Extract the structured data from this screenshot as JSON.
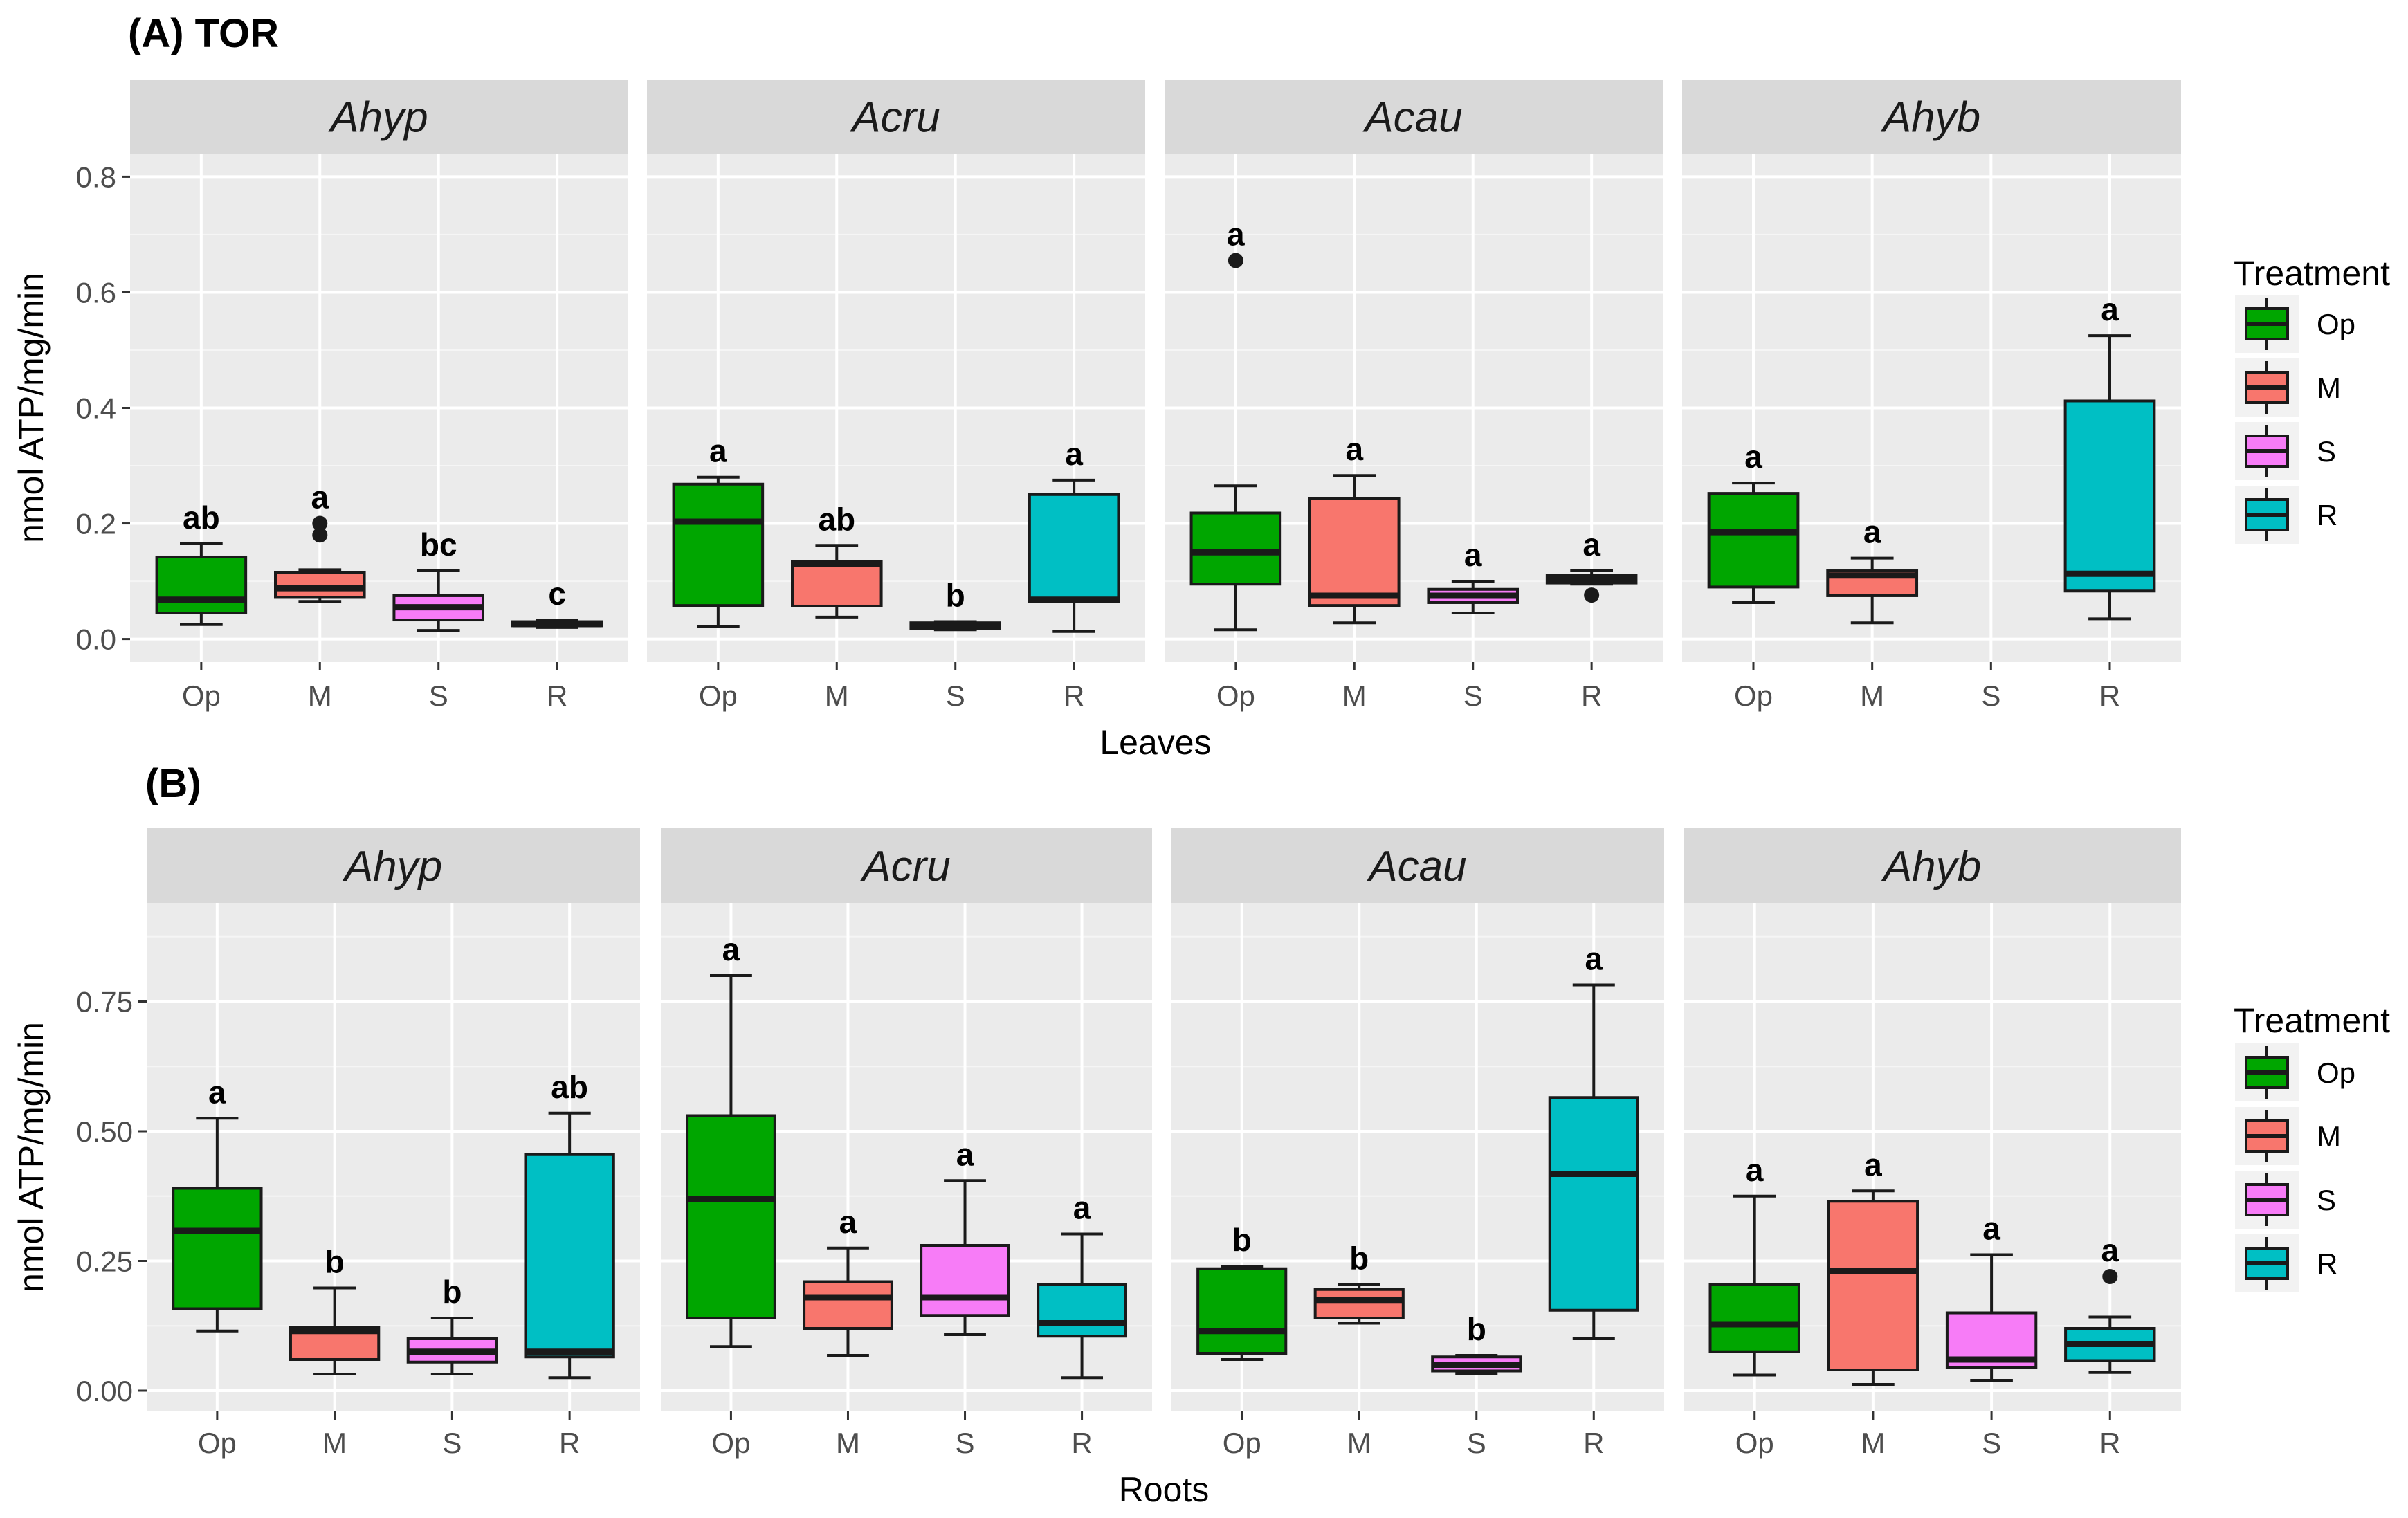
{
  "treatments": [
    "Op",
    "M",
    "S",
    "R"
  ],
  "colors": {
    "Op": "#00a600",
    "M": "#f8766d",
    "S": "#f77cf7",
    "R": "#00bfc4"
  },
  "chart_data": [
    {
      "type": "box",
      "panel_label": "(A) TOR",
      "xlabel": "Leaves",
      "ylabel": "nmol ATP/mg/min",
      "ylim": [
        -0.04,
        0.84
      ],
      "yticks": [
        0.0,
        0.2,
        0.4,
        0.6,
        0.8
      ],
      "ytick_labels": [
        "0.0",
        "0.2",
        "0.4",
        "0.6",
        "0.8"
      ],
      "legend": {
        "title": "Treatment",
        "entries": [
          "Op",
          "M",
          "S",
          "R"
        ],
        "placement": "right"
      },
      "facets": [
        {
          "name": "Ahyp",
          "boxes": [
            {
              "treatment": "Op",
              "min": 0.025,
              "q1": 0.045,
              "median": 0.068,
              "q3": 0.142,
              "max": 0.165,
              "outliers": [],
              "letter": "ab"
            },
            {
              "treatment": "M",
              "min": 0.065,
              "q1": 0.072,
              "median": 0.088,
              "q3": 0.115,
              "max": 0.12,
              "outliers": [
                0.18,
                0.2
              ],
              "letter": "a"
            },
            {
              "treatment": "S",
              "min": 0.015,
              "q1": 0.033,
              "median": 0.055,
              "q3": 0.075,
              "max": 0.118,
              "outliers": [],
              "letter": "bc"
            },
            {
              "treatment": "R",
              "min": 0.02,
              "q1": 0.023,
              "median": 0.026,
              "q3": 0.03,
              "max": 0.033,
              "outliers": [],
              "letter": "c"
            }
          ]
        },
        {
          "name": "Acru",
          "boxes": [
            {
              "treatment": "Op",
              "min": 0.022,
              "q1": 0.058,
              "median": 0.203,
              "q3": 0.268,
              "max": 0.28,
              "outliers": [],
              "letter": "a"
            },
            {
              "treatment": "M",
              "min": 0.038,
              "q1": 0.057,
              "median": 0.13,
              "q3": 0.134,
              "max": 0.162,
              "outliers": [],
              "letter": "ab"
            },
            {
              "treatment": "S",
              "min": 0.016,
              "q1": 0.018,
              "median": 0.022,
              "q3": 0.028,
              "max": 0.03,
              "outliers": [],
              "letter": "b"
            },
            {
              "treatment": "R",
              "min": 0.013,
              "q1": 0.065,
              "median": 0.068,
              "q3": 0.25,
              "max": 0.275,
              "outliers": [],
              "letter": "a"
            }
          ]
        },
        {
          "name": "Acau",
          "boxes": [
            {
              "treatment": "Op",
              "min": 0.016,
              "q1": 0.095,
              "median": 0.15,
              "q3": 0.218,
              "max": 0.265,
              "outliers": [
                0.655
              ],
              "letter": "a"
            },
            {
              "treatment": "M",
              "min": 0.028,
              "q1": 0.058,
              "median": 0.075,
              "q3": 0.243,
              "max": 0.283,
              "outliers": [],
              "letter": "a"
            },
            {
              "treatment": "S",
              "min": 0.045,
              "q1": 0.063,
              "median": 0.075,
              "q3": 0.086,
              "max": 0.1,
              "outliers": [],
              "letter": "a"
            },
            {
              "treatment": "R",
              "min": 0.095,
              "q1": 0.097,
              "median": 0.103,
              "q3": 0.11,
              "max": 0.118,
              "outliers": [
                0.076
              ],
              "letter": "a"
            }
          ]
        },
        {
          "name": "Ahyb",
          "boxes": [
            {
              "treatment": "Op",
              "min": 0.063,
              "q1": 0.09,
              "median": 0.185,
              "q3": 0.252,
              "max": 0.27,
              "outliers": [],
              "letter": "a"
            },
            {
              "treatment": "M",
              "min": 0.028,
              "q1": 0.075,
              "median": 0.11,
              "q3": 0.118,
              "max": 0.14,
              "outliers": [],
              "letter": "a"
            },
            {
              "treatment": "R",
              "min": 0.035,
              "q1": 0.083,
              "median": 0.113,
              "q3": 0.412,
              "max": 0.525,
              "outliers": [],
              "letter": "a"
            }
          ]
        }
      ]
    },
    {
      "type": "box",
      "panel_label": "(B)",
      "xlabel": "Roots",
      "ylabel": "nmol ATP/mg/min",
      "ylim": [
        -0.04,
        0.94
      ],
      "yticks": [
        0.0,
        0.25,
        0.5,
        0.75
      ],
      "ytick_labels": [
        "0.00",
        "0.25",
        "0.50",
        "0.75"
      ],
      "legend": {
        "title": "Treatment",
        "entries": [
          "Op",
          "M",
          "S",
          "R"
        ],
        "placement": "right"
      },
      "facets": [
        {
          "name": "Ahyp",
          "boxes": [
            {
              "treatment": "Op",
              "min": 0.115,
              "q1": 0.158,
              "median": 0.308,
              "q3": 0.39,
              "max": 0.525,
              "outliers": [],
              "letter": "a"
            },
            {
              "treatment": "M",
              "min": 0.032,
              "q1": 0.06,
              "median": 0.115,
              "q3": 0.122,
              "max": 0.198,
              "outliers": [],
              "letter": "b"
            },
            {
              "treatment": "S",
              "min": 0.032,
              "q1": 0.055,
              "median": 0.075,
              "q3": 0.1,
              "max": 0.14,
              "outliers": [],
              "letter": "b"
            },
            {
              "treatment": "R",
              "min": 0.025,
              "q1": 0.065,
              "median": 0.075,
              "q3": 0.455,
              "max": 0.535,
              "outliers": [],
              "letter": "ab"
            }
          ]
        },
        {
          "name": "Acru",
          "boxes": [
            {
              "treatment": "Op",
              "min": 0.085,
              "q1": 0.14,
              "median": 0.37,
              "q3": 0.53,
              "max": 0.8,
              "outliers": [],
              "letter": "a"
            },
            {
              "treatment": "M",
              "min": 0.068,
              "q1": 0.12,
              "median": 0.18,
              "q3": 0.21,
              "max": 0.275,
              "outliers": [],
              "letter": "a"
            },
            {
              "treatment": "S",
              "min": 0.108,
              "q1": 0.145,
              "median": 0.18,
              "q3": 0.28,
              "max": 0.405,
              "outliers": [],
              "letter": "a"
            },
            {
              "treatment": "R",
              "min": 0.025,
              "q1": 0.105,
              "median": 0.13,
              "q3": 0.205,
              "max": 0.302,
              "outliers": [],
              "letter": "a"
            }
          ]
        },
        {
          "name": "Acau",
          "boxes": [
            {
              "treatment": "Op",
              "min": 0.06,
              "q1": 0.072,
              "median": 0.115,
              "q3": 0.235,
              "max": 0.24,
              "outliers": [],
              "letter": "b"
            },
            {
              "treatment": "M",
              "min": 0.13,
              "q1": 0.14,
              "median": 0.175,
              "q3": 0.195,
              "max": 0.205,
              "outliers": [],
              "letter": "b"
            },
            {
              "treatment": "S",
              "min": 0.033,
              "q1": 0.038,
              "median": 0.05,
              "q3": 0.065,
              "max": 0.068,
              "outliers": [],
              "letter": "b"
            },
            {
              "treatment": "R",
              "min": 0.1,
              "q1": 0.155,
              "median": 0.418,
              "q3": 0.565,
              "max": 0.782,
              "outliers": [],
              "letter": "a"
            }
          ]
        },
        {
          "name": "Ahyb",
          "boxes": [
            {
              "treatment": "Op",
              "min": 0.03,
              "q1": 0.075,
              "median": 0.128,
              "q3": 0.205,
              "max": 0.375,
              "outliers": [],
              "letter": "a"
            },
            {
              "treatment": "M",
              "min": 0.012,
              "q1": 0.04,
              "median": 0.23,
              "q3": 0.365,
              "max": 0.385,
              "outliers": [],
              "letter": "a"
            },
            {
              "treatment": "S",
              "min": 0.02,
              "q1": 0.045,
              "median": 0.06,
              "q3": 0.15,
              "max": 0.262,
              "outliers": [],
              "letter": "a"
            },
            {
              "treatment": "R",
              "min": 0.035,
              "q1": 0.058,
              "median": 0.09,
              "q3": 0.12,
              "max": 0.142,
              "outliers": [
                0.22
              ],
              "letter": "a"
            }
          ]
        }
      ]
    }
  ]
}
